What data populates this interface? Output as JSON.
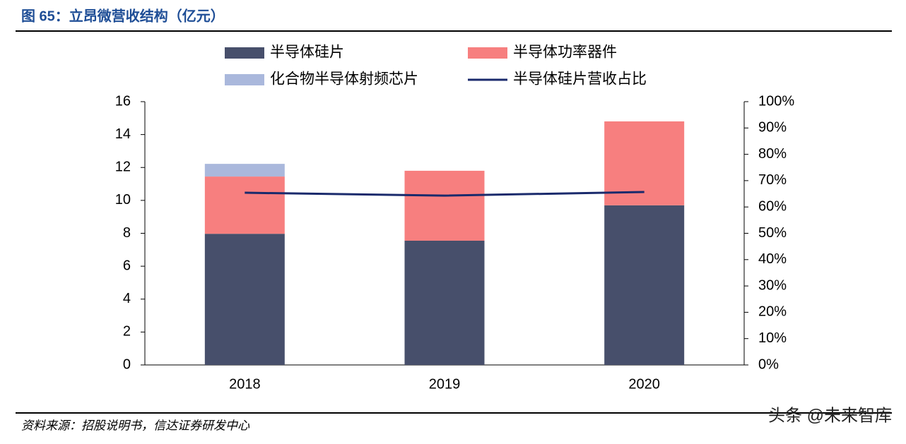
{
  "chart_data": {
    "type": "bar",
    "stacked": true,
    "title": "图 65：立昂微营收结构（亿元）",
    "source": "资料来源：招股说明书，信达证券研发中心",
    "watermark": "头条 @未来智库",
    "categories": [
      "2018",
      "2019",
      "2020"
    ],
    "series": [
      {
        "name": "半导体硅片",
        "color": "#474f6b",
        "values": [
          7.97,
          7.55,
          9.7
        ]
      },
      {
        "name": "半导体功率器件",
        "color": "#f77f7f",
        "values": [
          3.48,
          4.25,
          5.1
        ]
      },
      {
        "name": "化合物半导体射频芯片",
        "color": "#aab8dc",
        "values": [
          0.77,
          null,
          null
        ]
      },
      {
        "name": "半导体硅片营收占比",
        "color": "#1a2a6c",
        "type": "line",
        "axis": "y2",
        "values": [
          65.4,
          64.3,
          65.7
        ]
      }
    ],
    "ylim": [
      0,
      16
    ],
    "yticks": [
      0,
      2,
      4,
      6,
      8,
      10,
      12,
      14,
      16
    ],
    "y2lim": [
      0,
      100
    ],
    "y2ticks": [
      {
        "value": 0,
        "label": "0%"
      },
      {
        "value": 10,
        "label": "10%"
      },
      {
        "value": 20,
        "label": "20%"
      },
      {
        "value": 30,
        "label": "30%"
      },
      {
        "value": 40,
        "label": "40%"
      },
      {
        "value": 50,
        "label": "50%"
      },
      {
        "value": 60,
        "label": "60%"
      },
      {
        "value": 70,
        "label": "70%"
      },
      {
        "value": 80,
        "label": "80%"
      },
      {
        "value": 90,
        "label": "90%"
      },
      {
        "value": 100,
        "label": "100%"
      }
    ],
    "grid": false
  }
}
